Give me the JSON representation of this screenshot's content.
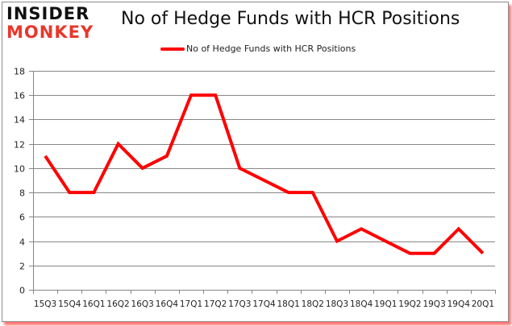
{
  "logo": {
    "line1": "INSIDER",
    "line2": "MONKEY"
  },
  "colors": {
    "series": "#ff0000",
    "grid": "#868686",
    "logo_red": "#e8372b",
    "shadow": "#ff0000"
  },
  "chart_data": {
    "type": "line",
    "title": "No of Hedge Funds with HCR Positions",
    "xlabel": "",
    "ylabel": "",
    "ylim": [
      0,
      18
    ],
    "yticks": [
      0,
      2,
      4,
      6,
      8,
      10,
      12,
      14,
      16,
      18
    ],
    "grid": true,
    "legend_position": "top",
    "categories": [
      "15Q3",
      "15Q4",
      "16Q1",
      "16Q2",
      "16Q3",
      "16Q4",
      "17Q1",
      "17Q2",
      "17Q3",
      "17Q4",
      "18Q1",
      "18Q2",
      "18Q3",
      "18Q4",
      "19Q1",
      "19Q2",
      "19Q3",
      "19Q4",
      "20Q1"
    ],
    "series": [
      {
        "name": "No of Hedge Funds with HCR Positions",
        "color": "#ff0000",
        "values": [
          11,
          8,
          8,
          12,
          10,
          11,
          16,
          16,
          10,
          9,
          8,
          8,
          4,
          5,
          4,
          3,
          3,
          5,
          3
        ]
      }
    ]
  }
}
